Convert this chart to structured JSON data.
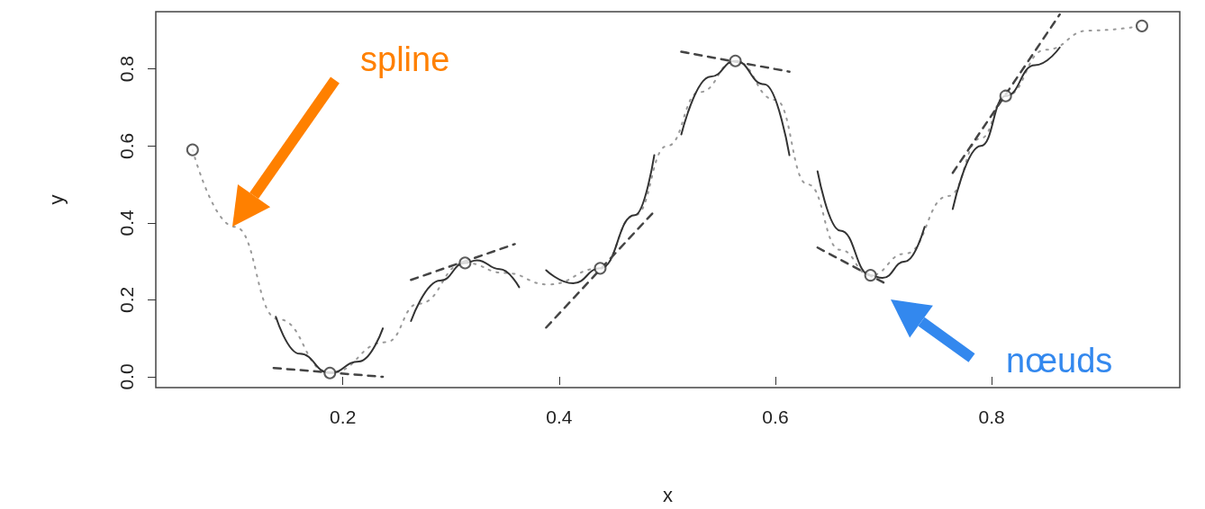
{
  "chart_data": {
    "type": "line",
    "xlabel": "x",
    "ylabel": "y",
    "xlim": [
      0.027,
      0.974
    ],
    "ylim": [
      -0.028,
      0.949
    ],
    "xticks": [
      0.2,
      0.4,
      0.6,
      0.8
    ],
    "yticks": [
      {
        "value": 0,
        "label": "0.0"
      },
      {
        "value": 0.2,
        "label": "0.2"
      },
      {
        "value": 0.4,
        "label": "0.4"
      },
      {
        "value": 0.6,
        "label": "0.6"
      },
      {
        "value": 0.8,
        "label": "0.8"
      }
    ],
    "grid": false,
    "annotations": [
      "spline",
      "nœuds"
    ],
    "series": [
      {
        "line_style": "dotted",
        "color": "#999999",
        "x": [
          0.061,
          0.1,
          0.14,
          0.188,
          0.24,
          0.27,
          0.313,
          0.35,
          0.39,
          0.438,
          0.47,
          0.5,
          0.53,
          0.563,
          0.6,
          0.63,
          0.66,
          0.688,
          0.72,
          0.76,
          0.79,
          0.813,
          0.85,
          0.89,
          0.939
        ],
        "values": [
          0.59,
          0.39,
          0.15,
          0.01,
          0.09,
          0.19,
          0.296,
          0.27,
          0.24,
          0.282,
          0.42,
          0.6,
          0.74,
          0.821,
          0.72,
          0.5,
          0.33,
          0.264,
          0.32,
          0.47,
          0.62,
          0.73,
          0.85,
          0.9,
          0.912
        ]
      },
      {
        "type": "line",
        "line_style": "solid",
        "color": "#333333",
        "x": [
          0.138,
          0.16,
          0.188,
          0.215,
          0.237
        ],
        "values": [
          0.156,
          0.06,
          0.01,
          0.04,
          0.126
        ]
      },
      {
        "type": "line",
        "line_style": "solid",
        "color": "#333333",
        "x": [
          0.263,
          0.29,
          0.313,
          0.324,
          0.345,
          0.363
        ],
        "values": [
          0.145,
          0.25,
          0.296,
          0.303,
          0.28,
          0.233
        ]
      },
      {
        "type": "line",
        "line_style": "solid",
        "color": "#333333",
        "x": [
          0.388,
          0.413,
          0.438,
          0.47,
          0.488
        ],
        "values": [
          0.277,
          0.243,
          0.282,
          0.42,
          0.576
        ]
      },
      {
        "type": "line",
        "line_style": "solid",
        "color": "#333333",
        "x": [
          0.513,
          0.54,
          0.563,
          0.59,
          0.613
        ],
        "values": [
          0.63,
          0.78,
          0.821,
          0.76,
          0.576
        ]
      },
      {
        "type": "line",
        "line_style": "solid",
        "color": "#333333",
        "x": [
          0.639,
          0.66,
          0.688,
          0.699,
          0.72,
          0.738
        ],
        "values": [
          0.534,
          0.38,
          0.264,
          0.257,
          0.3,
          0.39
        ]
      },
      {
        "type": "line",
        "line_style": "solid",
        "color": "#333333",
        "x": [
          0.764,
          0.79,
          0.813,
          0.84,
          0.863
        ],
        "values": [
          0.436,
          0.6,
          0.73,
          0.81,
          0.856
        ]
      },
      {
        "type": "line",
        "line_style": "dashed",
        "color": "#444444",
        "x": [
          0.136,
          0.237
        ],
        "values": [
          0.023,
          0.0
        ]
      },
      {
        "type": "line",
        "line_style": "dashed",
        "color": "#444444",
        "x": [
          0.263,
          0.359
        ],
        "values": [
          0.252,
          0.345
        ]
      },
      {
        "type": "line",
        "line_style": "dashed",
        "color": "#444444",
        "x": [
          0.388,
          0.488
        ],
        "values": [
          0.128,
          0.43
        ]
      },
      {
        "type": "line",
        "line_style": "dashed",
        "color": "#444444",
        "x": [
          0.513,
          0.613
        ],
        "values": [
          0.845,
          0.793
        ]
      },
      {
        "type": "line",
        "line_style": "dashed",
        "color": "#444444",
        "x": [
          0.639,
          0.7
        ],
        "values": [
          0.336,
          0.245
        ]
      },
      {
        "type": "line",
        "line_style": "dashed",
        "color": "#444444",
        "x": [
          0.764,
          0.863
        ],
        "values": [
          0.53,
          0.942
        ]
      },
      {
        "type": "scatter",
        "marker": "circle",
        "color": "#333333",
        "x": [
          0.061,
          0.188,
          0.313,
          0.438,
          0.563,
          0.688,
          0.813,
          0.939
        ],
        "values": [
          0.59,
          0.01,
          0.296,
          0.282,
          0.821,
          0.264,
          0.73,
          0.912
        ]
      }
    ]
  }
}
